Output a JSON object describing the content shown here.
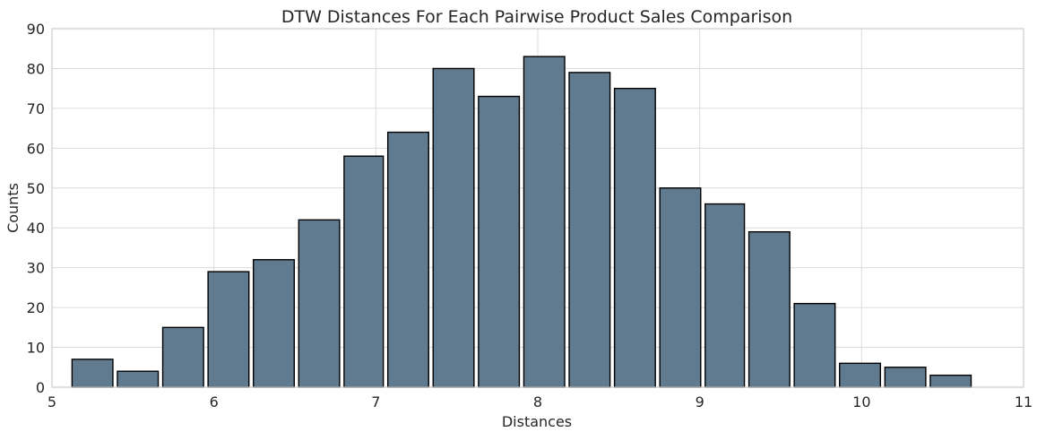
{
  "chart_data": {
    "type": "bar",
    "title": "DTW Distances For Each Pairwise Product Sales Comparison",
    "xlabel": "Distances",
    "ylabel": "Counts",
    "xlim": [
      5,
      11
    ],
    "ylim": [
      0,
      90
    ],
    "xticks": [
      "5",
      "6",
      "7",
      "8",
      "9",
      "10",
      "11"
    ],
    "yticks": [
      "0",
      "10",
      "20",
      "30",
      "40",
      "50",
      "60",
      "70",
      "80",
      "90"
    ],
    "grid": true,
    "bar_color": "#607b8f",
    "bins": [
      {
        "start": 5.11,
        "end": 5.39,
        "count": 7
      },
      {
        "start": 5.39,
        "end": 5.67,
        "count": 4
      },
      {
        "start": 5.67,
        "end": 5.95,
        "count": 15
      },
      {
        "start": 5.95,
        "end": 6.23,
        "count": 29
      },
      {
        "start": 6.23,
        "end": 6.51,
        "count": 32
      },
      {
        "start": 6.51,
        "end": 6.79,
        "count": 42
      },
      {
        "start": 6.79,
        "end": 7.06,
        "count": 58
      },
      {
        "start": 7.06,
        "end": 7.34,
        "count": 64
      },
      {
        "start": 7.34,
        "end": 7.62,
        "count": 80
      },
      {
        "start": 7.62,
        "end": 7.9,
        "count": 73
      },
      {
        "start": 7.9,
        "end": 8.18,
        "count": 83
      },
      {
        "start": 8.18,
        "end": 8.46,
        "count": 79
      },
      {
        "start": 8.46,
        "end": 8.74,
        "count": 75
      },
      {
        "start": 8.74,
        "end": 9.02,
        "count": 50
      },
      {
        "start": 9.02,
        "end": 9.29,
        "count": 46
      },
      {
        "start": 9.29,
        "end": 9.57,
        "count": 39
      },
      {
        "start": 9.57,
        "end": 9.85,
        "count": 21
      },
      {
        "start": 9.85,
        "end": 10.13,
        "count": 6
      },
      {
        "start": 10.13,
        "end": 10.41,
        "count": 5
      },
      {
        "start": 10.41,
        "end": 10.69,
        "count": 3
      }
    ]
  }
}
